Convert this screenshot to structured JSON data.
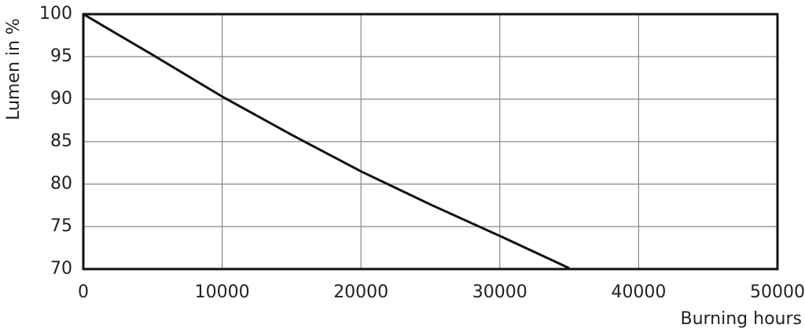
{
  "chart_data": {
    "type": "line",
    "x_label": "Burning hours",
    "y_label": "Lumen in %",
    "x": [
      0,
      5000,
      10000,
      15000,
      20000,
      25000,
      30000,
      35000
    ],
    "values": [
      100,
      95.2,
      90.3,
      85.8,
      81.5,
      77.6,
      73.9,
      70.1
    ],
    "color": "#111111",
    "xlim": [
      0,
      50000
    ],
    "xticks": [
      0,
      10000,
      20000,
      30000,
      40000,
      50000
    ],
    "ylim": [
      70,
      100
    ],
    "yticks": [
      70,
      75,
      80,
      85,
      90,
      95,
      100
    ],
    "grid": true
  }
}
